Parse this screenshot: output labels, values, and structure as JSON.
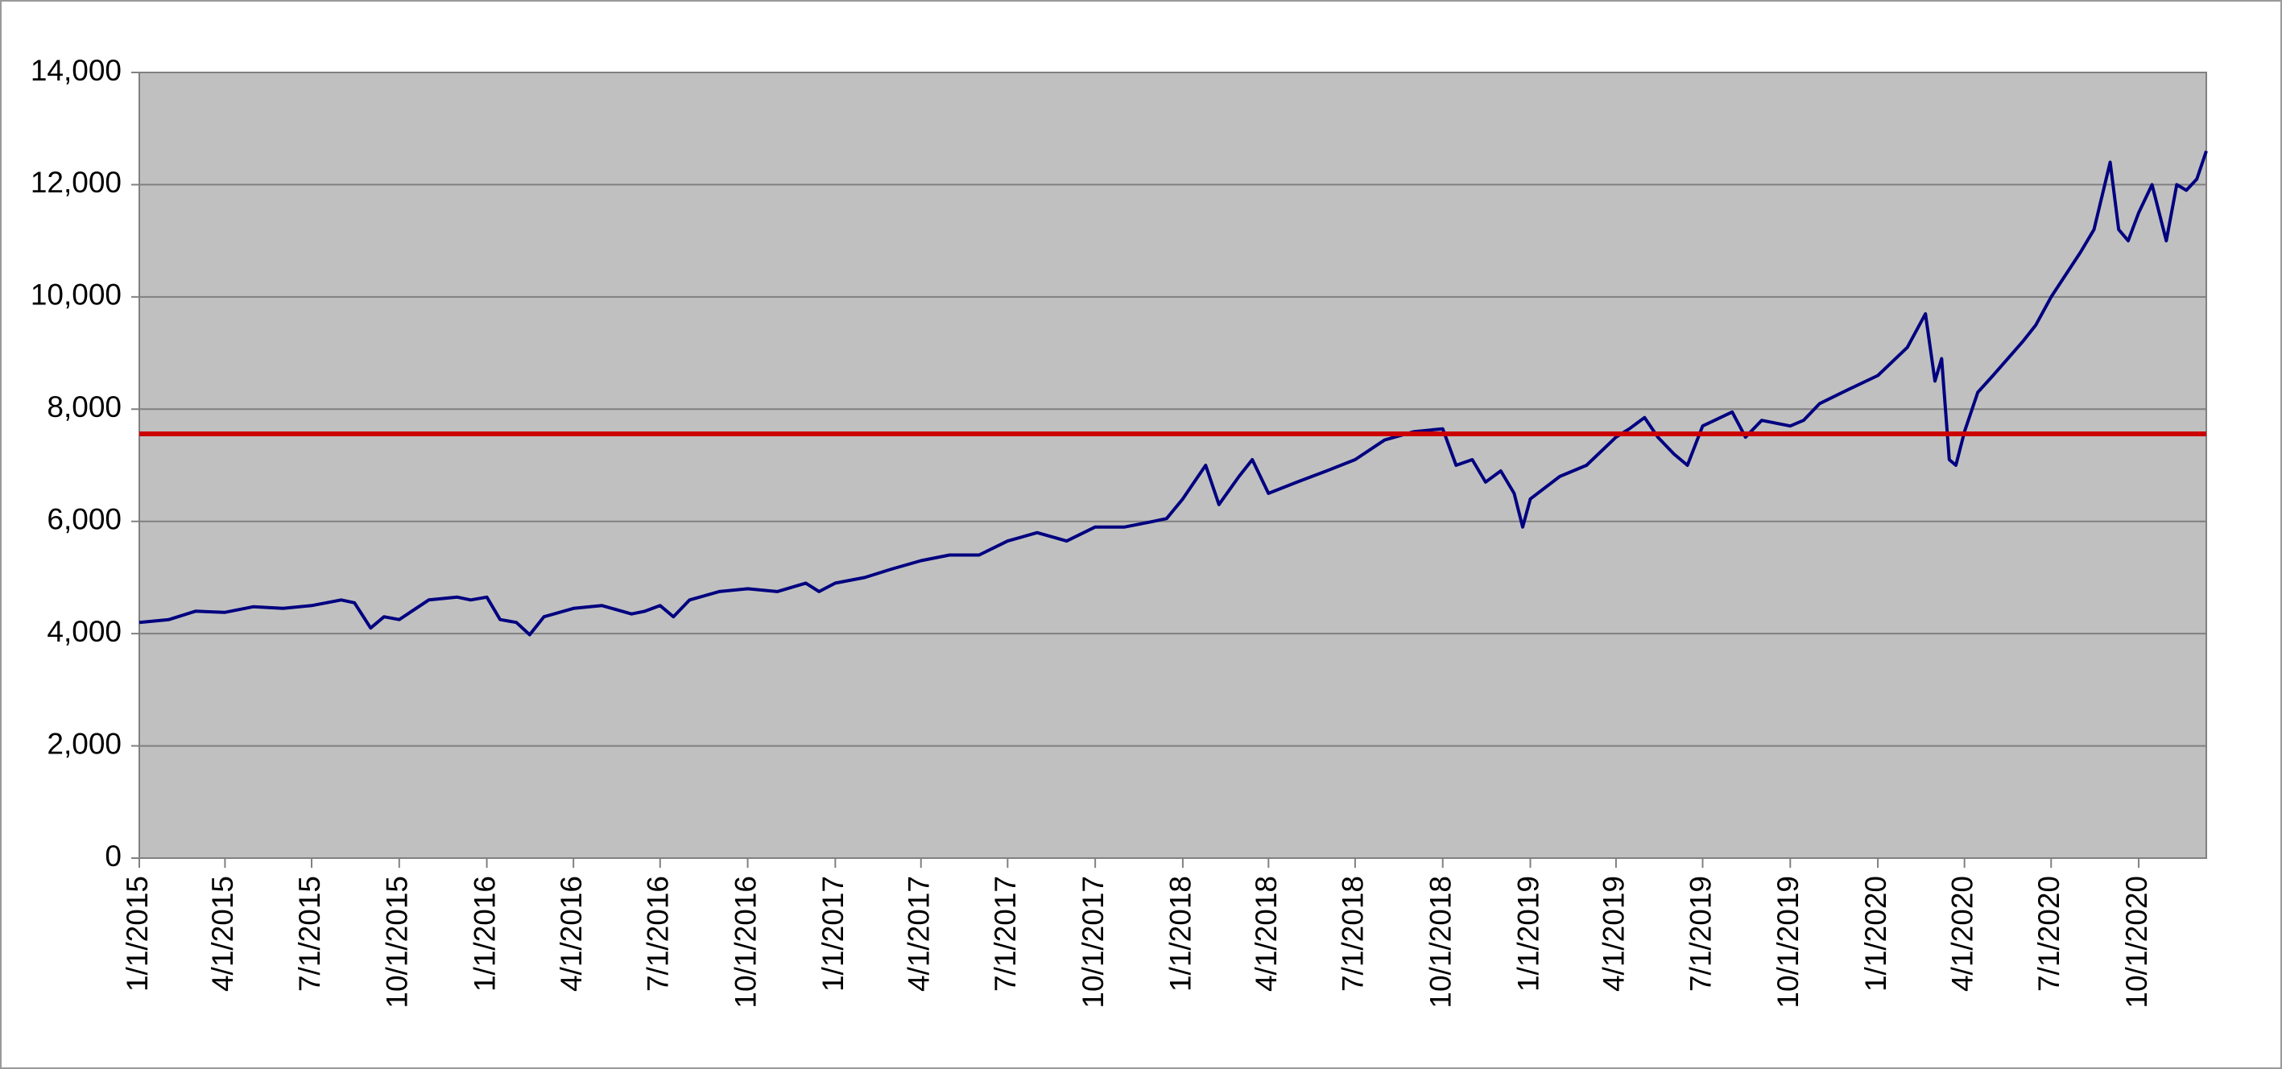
{
  "chart_data": {
    "type": "line",
    "x": [
      "1/1/2015",
      "2/1/2015",
      "3/1/2015",
      "4/1/2015",
      "5/1/2015",
      "6/1/2015",
      "7/1/2015",
      "8/1/2015",
      "8/15/2015",
      "9/1/2015",
      "9/15/2015",
      "10/1/2015",
      "11/1/2015",
      "12/1/2015",
      "12/15/2015",
      "1/1/2016",
      "1/15/2016",
      "2/1/2016",
      "2/15/2016",
      "3/1/2016",
      "4/1/2016",
      "5/1/2016",
      "6/1/2016",
      "6/15/2016",
      "7/1/2016",
      "7/15/2016",
      "8/1/2016",
      "9/1/2016",
      "10/1/2016",
      "11/1/2016",
      "12/1/2016",
      "12/15/2016",
      "1/1/2017",
      "2/1/2017",
      "3/1/2017",
      "4/1/2017",
      "5/1/2017",
      "6/1/2017",
      "7/1/2017",
      "8/1/2017",
      "9/1/2017",
      "10/1/2017",
      "11/1/2017",
      "12/1/2017",
      "12/15/2017",
      "1/1/2018",
      "1/25/2018",
      "2/8/2018",
      "3/1/2018",
      "3/15/2018",
      "4/1/2018",
      "5/1/2018",
      "6/1/2018",
      "7/1/2018",
      "8/1/2018",
      "9/1/2018",
      "10/1/2018",
      "10/15/2018",
      "11/1/2018",
      "11/15/2018",
      "12/1/2018",
      "12/15/2018",
      "12/24/2018",
      "1/1/2019",
      "2/1/2019",
      "3/1/2019",
      "4/1/2019",
      "4/15/2019",
      "5/1/2019",
      "5/15/2019",
      "6/1/2019",
      "6/15/2019",
      "7/1/2019",
      "8/1/2019",
      "8/15/2019",
      "9/1/2019",
      "10/1/2019",
      "10/15/2019",
      "11/1/2019",
      "12/1/2019",
      "1/1/2020",
      "2/1/2020",
      "2/20/2020",
      "3/1/2020",
      "3/8/2020",
      "3/16/2020",
      "3/23/2020",
      "4/1/2020",
      "4/15/2020",
      "5/1/2020",
      "6/1/2020",
      "6/15/2020",
      "7/1/2020",
      "8/1/2020",
      "8/15/2020",
      "9/1/2020",
      "9/10/2020",
      "9/20/2020",
      "10/1/2020",
      "10/15/2020",
      "10/30/2020",
      "11/10/2020",
      "11/20/2020",
      "12/1/2020",
      "12/11/2020"
    ],
    "series": [
      {
        "color": "#000080",
        "values": [
          4200,
          4250,
          4400,
          4380,
          4480,
          4450,
          4500,
          4600,
          4550,
          4100,
          4300,
          4250,
          4600,
          4650,
          4600,
          4650,
          4250,
          4200,
          3980,
          4300,
          4450,
          4500,
          4350,
          4400,
          4500,
          4300,
          4600,
          4750,
          4800,
          4750,
          4900,
          4750,
          4900,
          5000,
          5150,
          5300,
          5400,
          5400,
          5650,
          5800,
          5650,
          5900,
          5900,
          6000,
          6050,
          6400,
          7000,
          6300,
          6800,
          7100,
          6500,
          6700,
          6900,
          7100,
          7450,
          7600,
          7650,
          7000,
          7100,
          6700,
          6900,
          6500,
          5900,
          6400,
          6800,
          7000,
          7500,
          7650,
          7850,
          7500,
          7200,
          7000,
          7700,
          7950,
          7500,
          7800,
          7700,
          7800,
          8100,
          8350,
          8600,
          9100,
          9700,
          8500,
          8900,
          7100,
          7000,
          7600,
          8300,
          8600,
          9200,
          9500,
          10000,
          10800,
          11200,
          12400,
          11200,
          11000,
          11500,
          12000,
          11000,
          12000,
          11900,
          12100,
          12600
        ]
      }
    ],
    "reference_line": {
      "value": 7560,
      "color": "#cc0000"
    },
    "xlim": [
      "1/1/2015",
      "12/11/2020"
    ],
    "xticks": [
      "1/1/2015",
      "4/1/2015",
      "7/1/2015",
      "10/1/2015",
      "1/1/2016",
      "4/1/2016",
      "7/1/2016",
      "10/1/2016",
      "1/1/2017",
      "4/1/2017",
      "7/1/2017",
      "10/1/2017",
      "1/1/2018",
      "4/1/2018",
      "7/1/2018",
      "10/1/2018",
      "1/1/2019",
      "4/1/2019",
      "7/1/2019",
      "10/1/2019",
      "1/1/2020",
      "4/1/2020",
      "7/1/2020",
      "10/1/2020"
    ],
    "ylim": [
      0,
      14000
    ],
    "yticks": [
      0,
      {
        "value": 2000,
        "label": "2,000"
      },
      {
        "value": 4000,
        "label": "4,000"
      },
      {
        "value": 6000,
        "label": "6,000"
      },
      {
        "value": 8000,
        "label": "8,000"
      },
      {
        "value": 10000,
        "label": "10,000"
      },
      {
        "value": 12000,
        "label": "12,000"
      },
      {
        "value": 14000,
        "label": "14,000"
      }
    ],
    "grid": true,
    "plot_background": "#c0c0c0"
  }
}
